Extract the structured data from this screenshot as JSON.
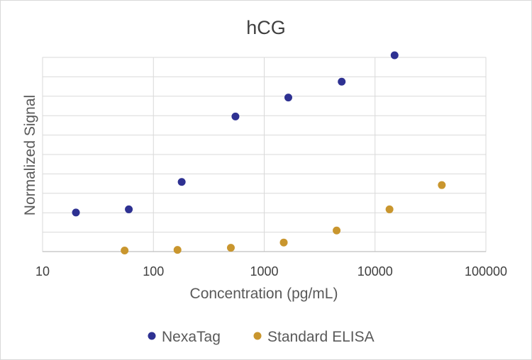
{
  "chart_data": {
    "type": "scatter",
    "title": "hCG",
    "xlabel": "Concentration (pg/mL)",
    "ylabel": "Normalized Signal",
    "x_scale": "log",
    "xlim": [
      10,
      100000
    ],
    "x_ticks": [
      "10",
      "100",
      "1000",
      "10000",
      "100000"
    ],
    "ylim": [
      0,
      9.2
    ],
    "y_tick_labels_shown": false,
    "grid": true,
    "legend": "bottom",
    "series": [
      {
        "name": "NexaTag",
        "color": "#2e3192",
        "points": [
          {
            "x": 20,
            "y": 1.85
          },
          {
            "x": 60,
            "y": 2.0
          },
          {
            "x": 180,
            "y": 3.3
          },
          {
            "x": 550,
            "y": 6.4
          },
          {
            "x": 1650,
            "y": 7.3
          },
          {
            "x": 5000,
            "y": 8.05
          },
          {
            "x": 15000,
            "y": 9.3
          }
        ]
      },
      {
        "name": "Standard ELISA",
        "color": "#c9962e",
        "points": [
          {
            "x": 55,
            "y": 0.05
          },
          {
            "x": 165,
            "y": 0.08
          },
          {
            "x": 500,
            "y": 0.18
          },
          {
            "x": 1500,
            "y": 0.43
          },
          {
            "x": 4500,
            "y": 1.0
          },
          {
            "x": 13500,
            "y": 2.0
          },
          {
            "x": 40000,
            "y": 3.15
          }
        ]
      }
    ]
  }
}
